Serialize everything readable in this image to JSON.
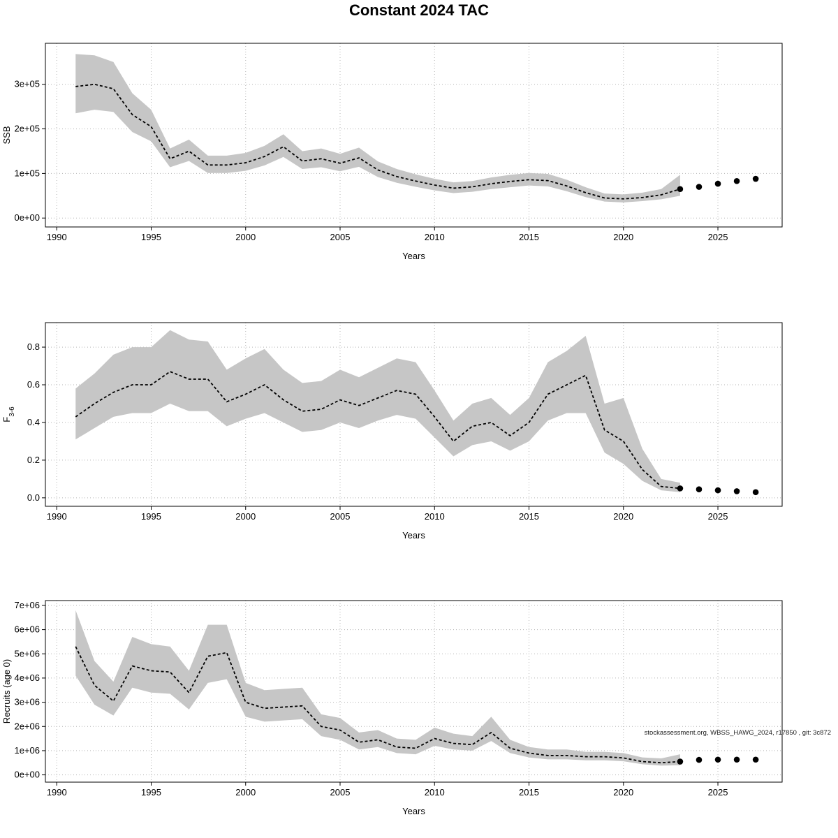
{
  "title": "Constant 2024 TAC",
  "watermark": "stockassessment.org, WBSS_HAWG_2024, r17850 , git: 3c872",
  "chart_data": [
    {
      "name": "ssb",
      "type": "line",
      "title": "",
      "xlabel": "Years",
      "ylabel": "SSB",
      "ylabel_sub": "",
      "legend": "none",
      "grid": true,
      "band_color": "#c6c6c6",
      "line_color": "#000000",
      "xlim": [
        1989.4,
        2028.4
      ],
      "ylim": [
        -20000,
        392000
      ],
      "xticks": [
        1990,
        1995,
        2000,
        2005,
        2010,
        2015,
        2020,
        2025
      ],
      "yticks": {
        "values": [
          0,
          100000,
          200000,
          300000
        ],
        "labels": [
          "0e+00",
          "1e+05",
          "2e+05",
          "3e+05"
        ]
      },
      "years": [
        1991,
        1992,
        1993,
        1994,
        1995,
        1996,
        1997,
        1998,
        1999,
        2000,
        2001,
        2002,
        2003,
        2004,
        2005,
        2006,
        2007,
        2008,
        2009,
        2010,
        2011,
        2012,
        2013,
        2014,
        2015,
        2016,
        2017,
        2018,
        2019,
        2020,
        2021,
        2022,
        2023
      ],
      "estimate": [
        295000,
        300000,
        290000,
        232000,
        205000,
        133000,
        150000,
        119000,
        119000,
        124000,
        138000,
        160000,
        128000,
        133000,
        123000,
        135000,
        108000,
        93000,
        83000,
        74000,
        67000,
        70000,
        77000,
        82000,
        86000,
        84000,
        72000,
        57000,
        45000,
        43000,
        46000,
        52000,
        65000
      ],
      "lower": [
        235000,
        243000,
        238000,
        193000,
        172000,
        114000,
        128000,
        101000,
        101000,
        106000,
        118000,
        137000,
        110000,
        114000,
        105000,
        115000,
        92000,
        79000,
        70000,
        62000,
        56000,
        59000,
        65000,
        69000,
        73000,
        71000,
        60000,
        47000,
        37000,
        35000,
        38000,
        42000,
        50000
      ],
      "upper": [
        368000,
        365000,
        350000,
        280000,
        243000,
        156000,
        176000,
        140000,
        140000,
        146000,
        162000,
        188000,
        150000,
        156000,
        144000,
        158000,
        127000,
        110000,
        98000,
        88000,
        80000,
        83000,
        91000,
        97000,
        101000,
        99000,
        86000,
        69000,
        55000,
        53000,
        57000,
        65000,
        97000
      ],
      "forecast": {
        "years": [
          2023,
          2024,
          2025,
          2026,
          2027
        ],
        "values": [
          65000,
          70000,
          77000,
          83000,
          88000
        ]
      }
    },
    {
      "name": "fbar",
      "type": "line",
      "title": "",
      "xlabel": "Years",
      "ylabel": "F",
      "ylabel_sub": "3-6",
      "legend": "none",
      "grid": true,
      "band_color": "#c6c6c6",
      "line_color": "#000000",
      "xlim": [
        1989.4,
        2028.4
      ],
      "ylim": [
        -0.045,
        0.93
      ],
      "xticks": [
        1990,
        1995,
        2000,
        2005,
        2010,
        2015,
        2020,
        2025
      ],
      "yticks": {
        "values": [
          0,
          0.2,
          0.4,
          0.6,
          0.8
        ],
        "labels": [
          "0.0",
          "0.2",
          "0.4",
          "0.6",
          "0.8"
        ]
      },
      "years": [
        1991,
        1992,
        1993,
        1994,
        1995,
        1996,
        1997,
        1998,
        1999,
        2000,
        2001,
        2002,
        2003,
        2004,
        2005,
        2006,
        2007,
        2008,
        2009,
        2010,
        2011,
        2012,
        2013,
        2014,
        2015,
        2016,
        2017,
        2018,
        2019,
        2020,
        2021,
        2022,
        2023
      ],
      "estimate": [
        0.43,
        0.5,
        0.56,
        0.6,
        0.6,
        0.67,
        0.63,
        0.63,
        0.51,
        0.55,
        0.6,
        0.52,
        0.46,
        0.47,
        0.52,
        0.49,
        0.53,
        0.57,
        0.55,
        0.43,
        0.3,
        0.38,
        0.4,
        0.33,
        0.4,
        0.55,
        0.6,
        0.65,
        0.36,
        0.3,
        0.15,
        0.06,
        0.05
      ],
      "lower": [
        0.31,
        0.37,
        0.43,
        0.45,
        0.45,
        0.5,
        0.46,
        0.46,
        0.38,
        0.42,
        0.45,
        0.4,
        0.35,
        0.36,
        0.4,
        0.37,
        0.41,
        0.44,
        0.42,
        0.32,
        0.22,
        0.28,
        0.3,
        0.25,
        0.3,
        0.41,
        0.45,
        0.45,
        0.24,
        0.18,
        0.09,
        0.04,
        0.03
      ],
      "upper": [
        0.58,
        0.66,
        0.76,
        0.8,
        0.8,
        0.89,
        0.84,
        0.83,
        0.68,
        0.74,
        0.79,
        0.68,
        0.61,
        0.62,
        0.68,
        0.64,
        0.69,
        0.74,
        0.72,
        0.57,
        0.41,
        0.5,
        0.53,
        0.44,
        0.53,
        0.72,
        0.78,
        0.86,
        0.5,
        0.53,
        0.26,
        0.1,
        0.08
      ],
      "forecast": {
        "years": [
          2023,
          2024,
          2025,
          2026,
          2027
        ],
        "values": [
          0.05,
          0.045,
          0.04,
          0.035,
          0.03
        ]
      }
    },
    {
      "name": "recruits",
      "type": "line",
      "title": "",
      "xlabel": "Years",
      "ylabel": "Recruits (age 0)",
      "ylabel_sub": "",
      "legend": "none",
      "grid": true,
      "band_color": "#c6c6c6",
      "line_color": "#000000",
      "xlim": [
        1989.4,
        2028.4
      ],
      "ylim": [
        -300000,
        7200000
      ],
      "xticks": [
        1990,
        1995,
        2000,
        2005,
        2010,
        2015,
        2020,
        2025
      ],
      "yticks": {
        "values": [
          0,
          1000000,
          2000000,
          3000000,
          4000000,
          5000000,
          6000000,
          7000000
        ],
        "labels": [
          "0e+00",
          "1e+06",
          "2e+06",
          "3e+06",
          "4e+06",
          "5e+06",
          "6e+06",
          "7e+06"
        ]
      },
      "years": [
        1991,
        1992,
        1993,
        1994,
        1995,
        1996,
        1997,
        1998,
        1999,
        2000,
        2001,
        2002,
        2003,
        2004,
        2005,
        2006,
        2007,
        2008,
        2009,
        2010,
        2011,
        2012,
        2013,
        2014,
        2015,
        2016,
        2017,
        2018,
        2019,
        2020,
        2021,
        2022,
        2023
      ],
      "estimate": [
        5300000,
        3700000,
        3050000,
        4500000,
        4300000,
        4250000,
        3400000,
        4900000,
        5050000,
        3000000,
        2750000,
        2800000,
        2850000,
        2000000,
        1850000,
        1350000,
        1450000,
        1150000,
        1100000,
        1500000,
        1300000,
        1250000,
        1750000,
        1100000,
        900000,
        800000,
        800000,
        750000,
        750000,
        700000,
        550000,
        500000,
        550000
      ],
      "lower": [
        4100000,
        2900000,
        2450000,
        3600000,
        3400000,
        3350000,
        2700000,
        3800000,
        3950000,
        2400000,
        2200000,
        2250000,
        2300000,
        1600000,
        1450000,
        1050000,
        1150000,
        900000,
        850000,
        1200000,
        1050000,
        1000000,
        1400000,
        900000,
        720000,
        640000,
        640000,
        600000,
        600000,
        560000,
        440000,
        380000,
        400000
      ],
      "upper": [
        6800000,
        4700000,
        3850000,
        5700000,
        5400000,
        5300000,
        4300000,
        6200000,
        6200000,
        3800000,
        3500000,
        3550000,
        3600000,
        2500000,
        2350000,
        1750000,
        1850000,
        1500000,
        1450000,
        1950000,
        1700000,
        1600000,
        2400000,
        1450000,
        1150000,
        1050000,
        1050000,
        950000,
        950000,
        900000,
        720000,
        680000,
        850000
      ],
      "forecast": {
        "years": [
          2023,
          2024,
          2025,
          2026,
          2027
        ],
        "values": [
          550000,
          620000,
          630000,
          630000,
          630000
        ]
      }
    }
  ]
}
